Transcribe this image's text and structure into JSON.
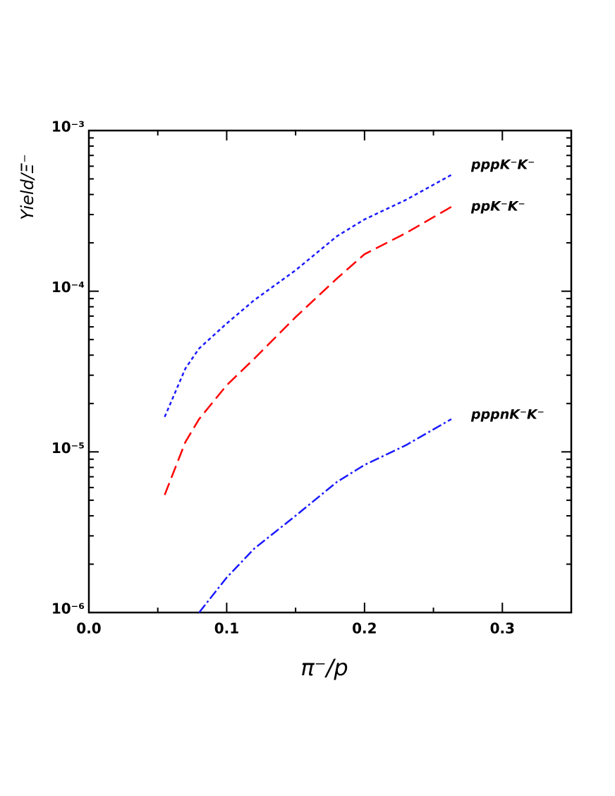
{
  "chart_data": {
    "type": "line",
    "xlabel": "π⁻/p",
    "ylabel": "Yield/Ξ⁻",
    "x": [
      0.055,
      0.07,
      0.08,
      0.1,
      0.12,
      0.15,
      0.18,
      0.2,
      0.23,
      0.263
    ],
    "series": [
      {
        "name": "pppK⁻K⁻",
        "color": "#1a1aff",
        "dash": "5,4",
        "values": [
          1.65e-05,
          3.3e-05,
          4.4e-05,
          6.3e-05,
          8.8e-05,
          0.000135,
          0.00022,
          0.00028,
          0.00037,
          0.00053
        ]
      },
      {
        "name": "ppK⁻K⁻",
        "color": "#ff0000",
        "dash": "18,8",
        "values": [
          5.4e-06,
          1.15e-05,
          1.6e-05,
          2.6e-05,
          3.8e-05,
          6.9e-05,
          0.00012,
          0.00017,
          0.00023,
          0.000335
        ]
      },
      {
        "name": "pppnK⁻K⁻",
        "color": "#1a1aff",
        "dash": "14,4,3,4",
        "values": [
          null,
          null,
          1e-06,
          1.65e-06,
          2.5e-06,
          4e-06,
          6.5e-06,
          8.3e-06,
          1.1e-05,
          1.6e-05
        ]
      }
    ],
    "xlim": [
      0,
      0.35
    ],
    "xticks": [
      {
        "value": 0,
        "label": "0.0"
      },
      0.1,
      0.2,
      0.3
    ],
    "ylim": [
      1e-06,
      0.001
    ],
    "yticks": [
      {
        "value": 1e-06,
        "label": "10⁻⁶"
      },
      {
        "value": 1e-05,
        "label": "10⁻⁵"
      },
      {
        "value": 0.0001,
        "label": "10⁻⁴"
      },
      {
        "value": 0.001,
        "label": "10⁻³"
      }
    ],
    "ylog": true
  }
}
